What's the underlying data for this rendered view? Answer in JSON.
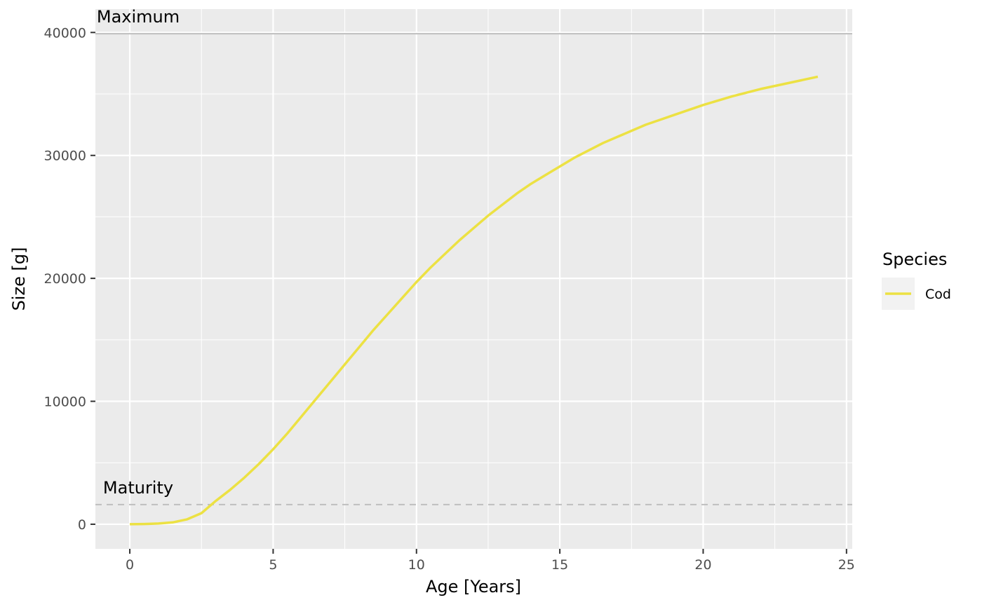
{
  "chart_data": {
    "type": "line",
    "xlabel": "Age [Years]",
    "ylabel": "Size [g]",
    "xlim": [
      -1.2,
      25.2
    ],
    "ylim": [
      -2000,
      41900
    ],
    "x_ticks": [
      0,
      5,
      10,
      15,
      20,
      25
    ],
    "y_ticks": [
      0,
      10000,
      20000,
      30000,
      40000
    ],
    "x_tick_labels": [
      "0",
      "5",
      "10",
      "15",
      "20",
      "25"
    ],
    "y_tick_labels": [
      "0",
      "10000",
      "20000",
      "30000",
      "40000"
    ],
    "grid": true,
    "legend": {
      "title": "Species",
      "placement": "right"
    },
    "reference_lines": [
      {
        "label": "Maximum",
        "value": 39900,
        "style": "solid",
        "color": "#bebebe"
      },
      {
        "label": "Maturity",
        "value": 1600,
        "style": "dashed",
        "color": "#bebebe"
      }
    ],
    "series": [
      {
        "name": "Cod",
        "color": "#ece143",
        "x": [
          0,
          0.5,
          1,
          1.5,
          2,
          2.5,
          3,
          3.5,
          4,
          4.5,
          5,
          5.5,
          6,
          6.5,
          7,
          7.5,
          8,
          8.5,
          9,
          9.5,
          10,
          10.5,
          11,
          11.5,
          12,
          12.5,
          13,
          13.5,
          14,
          14.5,
          15,
          15.5,
          16,
          16.5,
          17,
          17.5,
          18,
          18.5,
          19,
          19.5,
          20,
          20.5,
          21,
          21.5,
          22,
          22.5,
          23,
          23.5,
          24
        ],
        "values": [
          0,
          20,
          60,
          150,
          400,
          900,
          1900,
          2800,
          3800,
          4900,
          6100,
          7400,
          8800,
          10200,
          11600,
          13000,
          14400,
          15800,
          17100,
          18400,
          19700,
          20900,
          22000,
          23100,
          24100,
          25100,
          26000,
          26900,
          27700,
          28400,
          29100,
          29800,
          30400,
          31000,
          31500,
          32000,
          32500,
          32900,
          33300,
          33700,
          34100,
          34450,
          34800,
          35100,
          35400,
          35650,
          35900,
          36150,
          36400
        ]
      }
    ]
  }
}
